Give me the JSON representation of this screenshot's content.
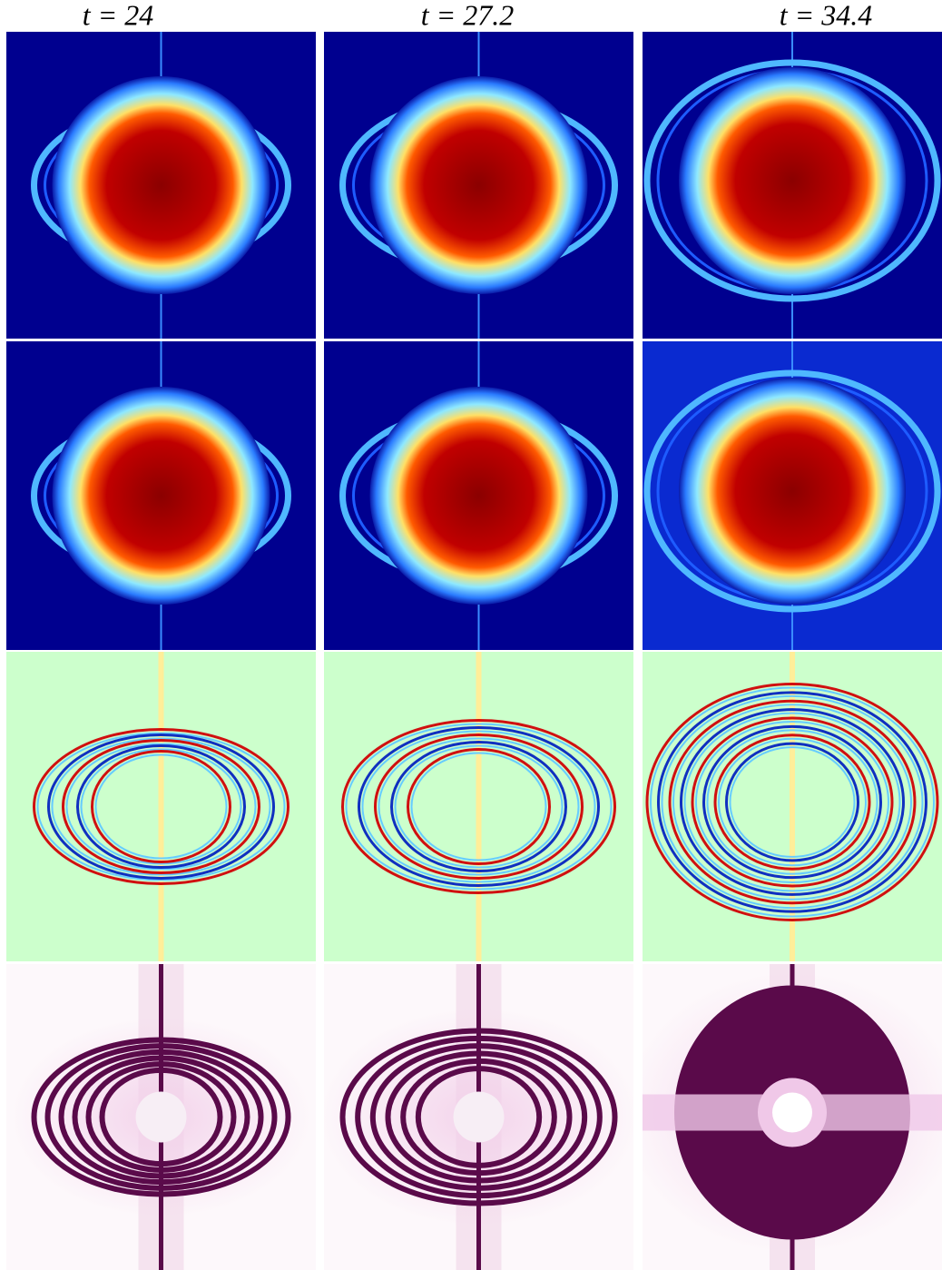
{
  "header": {
    "columns": [
      "t = 24",
      "t = 27.2",
      "t = 34.4"
    ]
  }
}
